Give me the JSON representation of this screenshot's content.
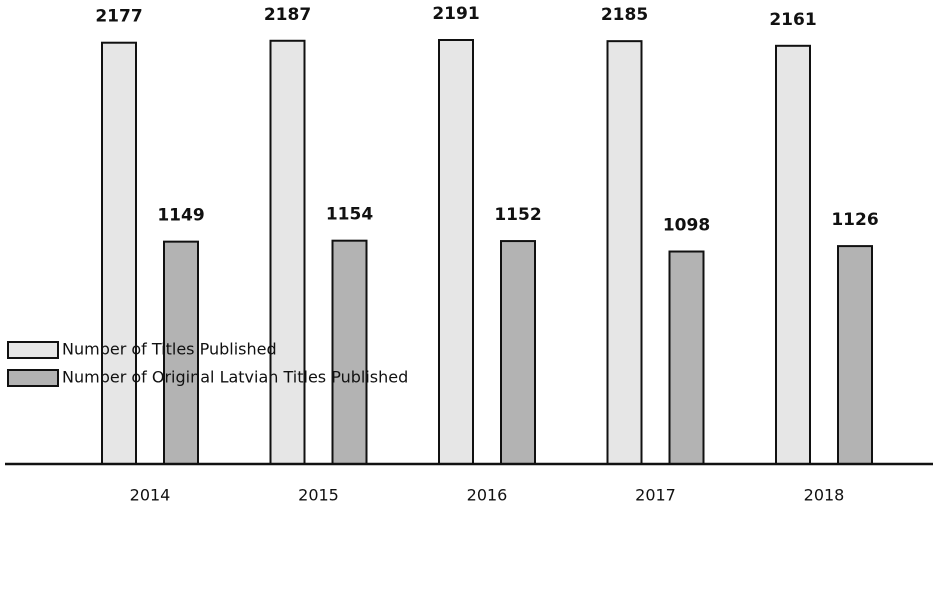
{
  "chart_data": {
    "type": "bar",
    "categories": [
      "2014",
      "2015",
      "2016",
      "2017",
      "2018"
    ],
    "series": [
      {
        "name": "Number of Titles Published",
        "color": "#e6e6e6",
        "values": [
          2177,
          2187,
          2191,
          2185,
          2161
        ]
      },
      {
        "name": "Number of Original Latvian Titles Published",
        "color": "#b3b3b3",
        "values": [
          1149,
          1154,
          1152,
          1098,
          1126
        ]
      }
    ]
  }
}
